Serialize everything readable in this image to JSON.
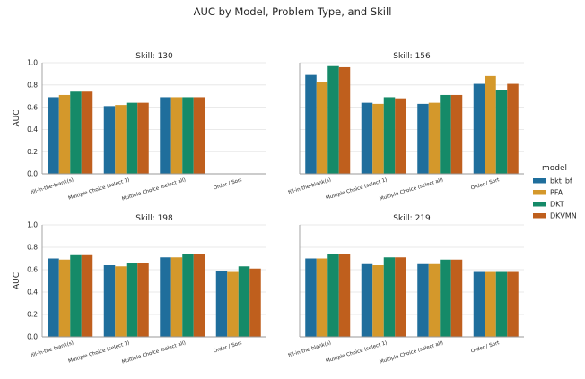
{
  "chart_data": {
    "type": "bar",
    "title": "AUC by Model, Problem Type, and Skill",
    "ylabel": "AUC",
    "ylim": [
      0,
      1.0
    ],
    "yticks": [
      "0.0",
      "0.2",
      "0.4",
      "0.6",
      "0.8",
      "1.0"
    ],
    "categories": [
      "fill-in-the-blank(s)",
      "Multiple Choice (select 1)",
      "Multiple Choice (select all)",
      "Order / Sort"
    ],
    "legend": {
      "title": "model",
      "placement": "right",
      "entries": [
        {
          "name": "bkt_bf",
          "color": "#1f6e9c"
        },
        {
          "name": "PFA",
          "color": "#d4982b"
        },
        {
          "name": "DKT",
          "color": "#158a68"
        },
        {
          "name": "DKVMN",
          "color": "#bf5f1d"
        }
      ]
    },
    "grid": true,
    "facets": [
      {
        "title": "Skill: 130",
        "series": [
          {
            "name": "bkt_bf",
            "values": [
              0.69,
              0.61,
              0.69,
              null
            ]
          },
          {
            "name": "PFA",
            "values": [
              0.71,
              0.62,
              0.69,
              null
            ]
          },
          {
            "name": "DKT",
            "values": [
              0.74,
              0.64,
              0.69,
              null
            ]
          },
          {
            "name": "DKVMN",
            "values": [
              0.74,
              0.64,
              0.69,
              null
            ]
          }
        ]
      },
      {
        "title": "Skill: 156",
        "series": [
          {
            "name": "bkt_bf",
            "values": [
              0.89,
              0.64,
              0.63,
              0.81
            ]
          },
          {
            "name": "PFA",
            "values": [
              0.83,
              0.63,
              0.64,
              0.88
            ]
          },
          {
            "name": "DKT",
            "values": [
              0.97,
              0.69,
              0.71,
              0.75
            ]
          },
          {
            "name": "DKVMN",
            "values": [
              0.96,
              0.68,
              0.71,
              0.81
            ]
          }
        ]
      },
      {
        "title": "Skill: 198",
        "series": [
          {
            "name": "bkt_bf",
            "values": [
              0.7,
              0.64,
              0.71,
              0.59
            ]
          },
          {
            "name": "PFA",
            "values": [
              0.69,
              0.63,
              0.71,
              0.58
            ]
          },
          {
            "name": "DKT",
            "values": [
              0.73,
              0.66,
              0.74,
              0.63
            ]
          },
          {
            "name": "DKVMN",
            "values": [
              0.73,
              0.66,
              0.74,
              0.61
            ]
          }
        ]
      },
      {
        "title": "Skill: 219",
        "series": [
          {
            "name": "bkt_bf",
            "values": [
              0.7,
              0.65,
              0.65,
              0.58
            ]
          },
          {
            "name": "PFA",
            "values": [
              0.7,
              0.64,
              0.65,
              0.58
            ]
          },
          {
            "name": "DKT",
            "values": [
              0.74,
              0.71,
              0.69,
              0.58
            ]
          },
          {
            "name": "DKVMN",
            "values": [
              0.74,
              0.71,
              0.69,
              0.58
            ]
          }
        ]
      }
    ]
  }
}
